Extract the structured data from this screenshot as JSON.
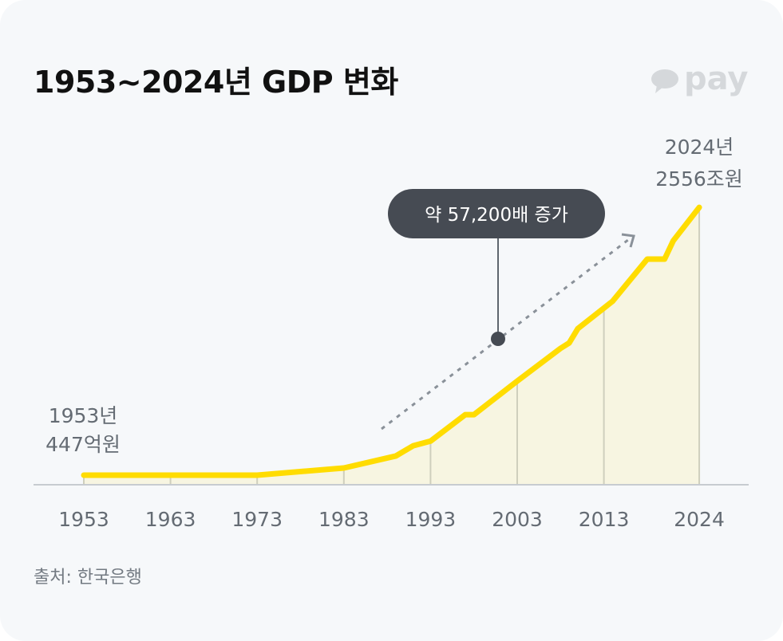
{
  "title": "1953~2024년 GDP 변화",
  "logo": {
    "text": "pay",
    "icon": "speech-bubble-icon",
    "color": "#d5d8db"
  },
  "source": "출처: 한국은행",
  "chart_data": {
    "type": "area",
    "title": "1953~2024년 GDP 변화",
    "xlabel": "",
    "ylabel": "",
    "yscale": "log",
    "unit": "조원",
    "grid": false,
    "x_ticks": [
      1953,
      1963,
      1973,
      1983,
      1993,
      2003,
      2013,
      2024
    ],
    "series": [
      {
        "x": [
          1953,
          1973,
          1983,
          1989,
          1991,
          1993,
          1997,
          1998,
          2003,
          2008,
          2009,
          2010,
          2014,
          2018,
          2020,
          2021,
          2024
        ],
        "values": [
          0.0447,
          0.0447,
          0.06,
          0.098,
          0.149,
          0.18,
          0.53,
          0.53,
          2.1,
          8.0,
          10.0,
          18,
          55,
          308,
          308,
          652,
          2556
        ]
      }
    ],
    "colors": {
      "line": "#ffdc00",
      "fill": "#f7f5e1",
      "bubble": "#464b53",
      "arrow": "#8a9199"
    },
    "start_label": {
      "year": "1953년",
      "value": "447억원"
    },
    "end_label": {
      "year": "2024년",
      "value": "2556조원"
    },
    "annotation": "약 57,200배 증가"
  }
}
